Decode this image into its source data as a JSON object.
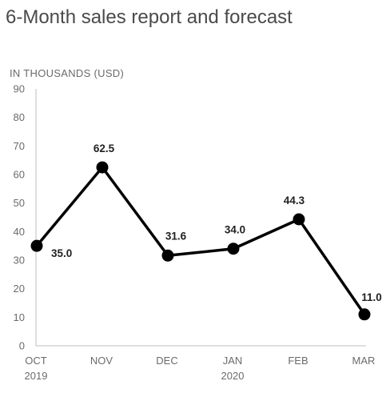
{
  "colors": {
    "line": "#000000",
    "axis": "#bdbdbd",
    "text": "#6b6b6b",
    "title": "#4a4a4a"
  },
  "chart_data": {
    "type": "line",
    "title": "6-Month sales report and forecast",
    "ylabel": "IN THOUSANDS (USD)",
    "categories": [
      "OCT",
      "NOV",
      "DEC",
      "JAN",
      "FEB",
      "MAR"
    ],
    "category_sublabels": [
      "2019",
      "",
      "",
      "2020",
      "",
      ""
    ],
    "data_labels": [
      "35.0",
      "62.5",
      "31.6",
      "34.0",
      "44.3",
      "11.0"
    ],
    "series": [
      {
        "values": [
          35.0,
          62.5,
          31.6,
          34.0,
          44.3,
          11.0
        ]
      }
    ],
    "ylim": [
      0,
      90
    ],
    "yticks": [
      0,
      10,
      20,
      30,
      40,
      50,
      60,
      70,
      80,
      90
    ],
    "grid": false,
    "legend": "none"
  }
}
